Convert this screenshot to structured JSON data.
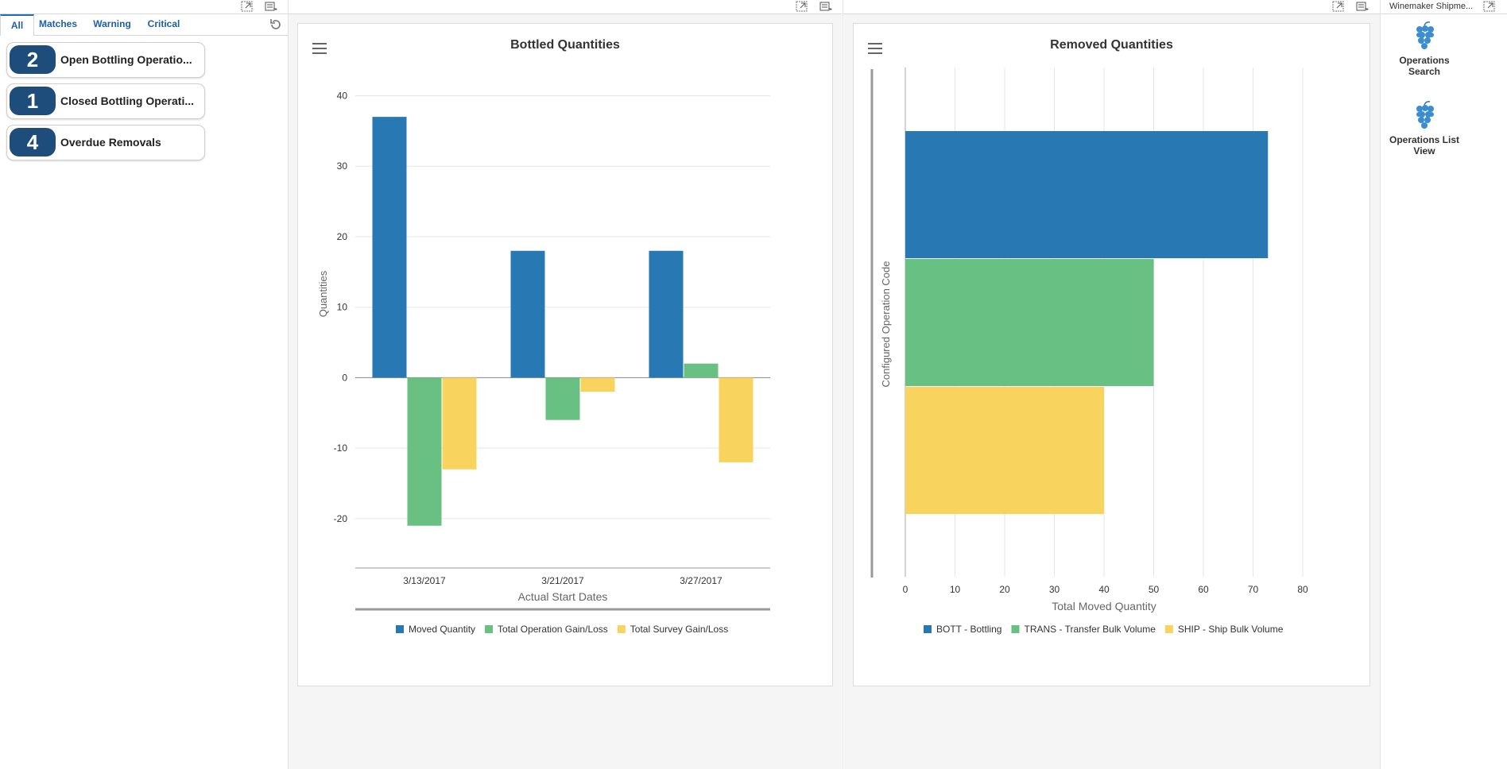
{
  "tabs": [
    {
      "label": "All",
      "active": true
    },
    {
      "label": "Matches",
      "active": false
    },
    {
      "label": "Warning",
      "active": false
    },
    {
      "label": "Critical",
      "active": false
    }
  ],
  "kpis": [
    {
      "count": "2",
      "label": "Open Bottling Operatio..."
    },
    {
      "count": "1",
      "label": "Closed Bottling Operati..."
    },
    {
      "count": "4",
      "label": "Overdue Removals"
    }
  ],
  "right_pane": {
    "title": "Winemaker Shipme...",
    "launchers": [
      {
        "line1": "Operations",
        "line2": "Search"
      },
      {
        "line1": "Operations List",
        "line2": "View"
      }
    ]
  },
  "colors": {
    "blue": "#2878b4",
    "green": "#68c182",
    "yellow": "#f8d35e",
    "badge": "#1e4d7b",
    "tab_accent": "#1f6cc0"
  },
  "chart_data": [
    {
      "type": "bar",
      "title": "Bottled Quantities",
      "xlabel": "Actual Start Dates",
      "ylabel": "Quantities",
      "categories": [
        "3/13/2017",
        "3/21/2017",
        "3/27/2017"
      ],
      "ylim": [
        -27,
        44
      ],
      "yticks": [
        40,
        30,
        20,
        10,
        0,
        -10,
        -20
      ],
      "series": [
        {
          "name": "Moved Quantity",
          "color": "#2878b4",
          "values": [
            37,
            18,
            18
          ]
        },
        {
          "name": "Total Operation Gain/Loss",
          "color": "#68c182",
          "values": [
            -21,
            -6,
            2
          ]
        },
        {
          "name": "Total Survey Gain/Loss",
          "color": "#f8d35e",
          "values": [
            -13,
            -2,
            -12
          ]
        }
      ],
      "grid": true,
      "legend": "bottom"
    },
    {
      "type": "bar",
      "orientation": "horizontal",
      "title": "Removed Quantities",
      "xlabel": "Total Moved Quantity",
      "ylabel": "Configured Operation Code",
      "xlim": [
        0,
        80
      ],
      "xticks": [
        0,
        10,
        20,
        30,
        40,
        50,
        60,
        70,
        80
      ],
      "series": [
        {
          "name": "BOTT - Bottling",
          "color": "#2878b4",
          "value": 73
        },
        {
          "name": "TRANS - Transfer Bulk Volume",
          "color": "#68c182",
          "value": 50
        },
        {
          "name": "SHIP - Ship Bulk Volume",
          "color": "#f8d35e",
          "value": 40
        }
      ],
      "grid": true,
      "legend": "bottom"
    }
  ]
}
